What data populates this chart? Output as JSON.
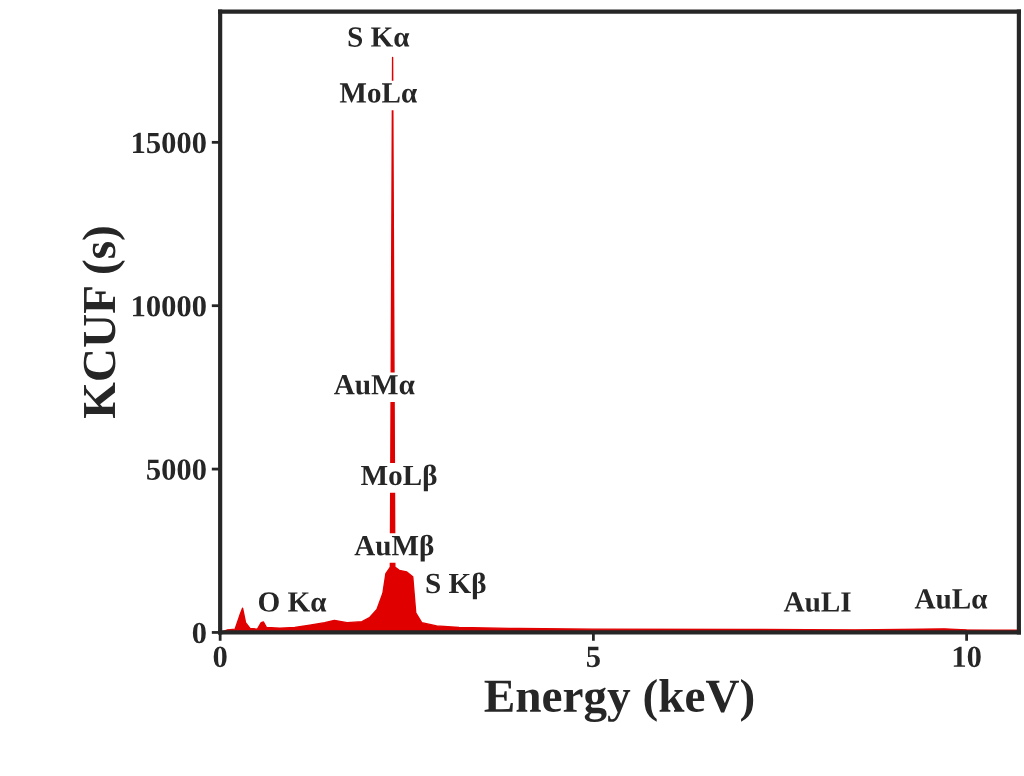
{
  "chart_data": {
    "type": "area",
    "xlabel": "Energy (keV)",
    "ylabel": "KCUF (s)",
    "xlim": [
      0,
      10.7
    ],
    "ylim": [
      0,
      19000
    ],
    "xticks": [
      0,
      5,
      10
    ],
    "yticks": [
      0,
      5000,
      10000,
      15000
    ],
    "grid": false,
    "x": [
      0,
      0.1,
      0.2,
      0.26,
      0.3,
      0.34,
      0.4,
      0.5,
      0.55,
      0.58,
      0.62,
      0.8,
      1.0,
      1.2,
      1.4,
      1.53,
      1.7,
      1.9,
      2.0,
      2.1,
      2.18,
      2.22,
      2.28,
      2.31,
      2.34,
      2.4,
      2.5,
      2.58,
      2.62,
      2.7,
      2.9,
      3.2,
      4,
      5,
      7,
      8.5,
      9.7,
      10,
      10.7
    ],
    "series": [
      {
        "color": "#e00000",
        "values": [
          0,
          80,
          100,
          500,
          740,
          300,
          120,
          100,
          300,
          320,
          150,
          130,
          150,
          220,
          300,
          370,
          300,
          330,
          450,
          700,
          1200,
          1800,
          2000,
          17600,
          2000,
          1900,
          1850,
          1700,
          600,
          300,
          200,
          150,
          120,
          100,
          90,
          80,
          110,
          80,
          70
        ]
      }
    ],
    "annotations": [
      "S Kα",
      "MoLα",
      "AuMα",
      "MoLβ",
      "AuMβ",
      "O Kα",
      "S Kβ",
      "AuLI",
      "AuLα"
    ]
  }
}
